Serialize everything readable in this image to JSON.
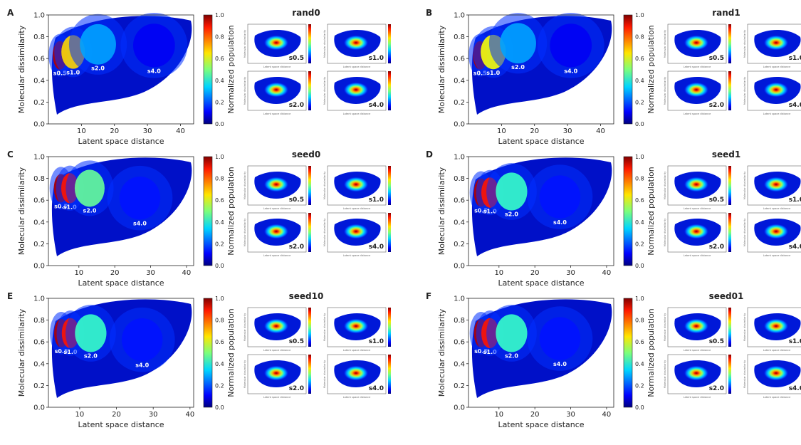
{
  "figure": {
    "shared": {
      "xlabel": "Latent space distance",
      "ylabel": "Molecular dissimilarity",
      "colorbar_label": "Normalized population",
      "colorbar_ticks": [
        "0.0",
        "0.2",
        "0.4",
        "0.6",
        "0.8",
        "1.0"
      ],
      "y_ticks": [
        "0.0",
        "0.2",
        "0.4",
        "0.6",
        "0.8",
        "1.0"
      ],
      "colormap": "jet",
      "inset_labels": [
        "s0.5",
        "s1.0",
        "s2.0",
        "s4.0"
      ],
      "inset_xlabel": "Latent space distance",
      "inset_ylabel": "Molecular dissimilarity"
    }
  },
  "chart_data": [
    {
      "panel": "A",
      "title": "rand0",
      "type": "heatmap",
      "xlabel": "Latent space distance",
      "ylabel": "Molecular dissimilarity",
      "x_ticks": [
        "10",
        "20",
        "30",
        "40"
      ],
      "xlim": [
        0,
        44
      ],
      "ylim": [
        0,
        1
      ],
      "clusters": [
        {
          "label": "s0.5",
          "x": 3.5,
          "y": 0.63,
          "peak": 1.0
        },
        {
          "label": "s1.0",
          "x": 7.5,
          "y": 0.66,
          "peak": 0.7
        },
        {
          "label": "s2.0",
          "x": 15,
          "y": 0.73,
          "peak": 0.3
        },
        {
          "label": "s4.0",
          "x": 32,
          "y": 0.72,
          "peak": 0.12
        }
      ]
    },
    {
      "panel": "B",
      "title": "rand1",
      "type": "heatmap",
      "xlabel": "Latent space distance",
      "ylabel": "Molecular dissimilarity",
      "x_ticks": [
        "10",
        "20",
        "30",
        "40"
      ],
      "xlim": [
        0,
        44
      ],
      "ylim": [
        0,
        1
      ],
      "clusters": [
        {
          "label": "s0.5",
          "x": 3.5,
          "y": 0.63,
          "peak": 1.0
        },
        {
          "label": "s1.0",
          "x": 7.5,
          "y": 0.66,
          "peak": 0.65
        },
        {
          "label": "s2.0",
          "x": 15,
          "y": 0.74,
          "peak": 0.3
        },
        {
          "label": "s4.0",
          "x": 31,
          "y": 0.72,
          "peak": 0.12
        }
      ]
    },
    {
      "panel": "C",
      "title": "seed0",
      "type": "heatmap",
      "xlabel": "Latent space distance",
      "ylabel": "Molecular dissimilarity",
      "x_ticks": [
        "10",
        "20",
        "30",
        "40"
      ],
      "xlim": [
        1.5,
        42
      ],
      "ylim": [
        0,
        1
      ],
      "clusters": [
        {
          "label": "s0.5",
          "x": 5,
          "y": 0.71,
          "peak": 1.0
        },
        {
          "label": "s1.0",
          "x": 7.5,
          "y": 0.71,
          "peak": 0.9
        },
        {
          "label": "s2.0",
          "x": 13,
          "y": 0.71,
          "peak": 0.5
        },
        {
          "label": "s4.0",
          "x": 27,
          "y": 0.62,
          "peak": 0.15
        }
      ]
    },
    {
      "panel": "D",
      "title": "seed1",
      "type": "heatmap",
      "xlabel": "Latent space distance",
      "ylabel": "Molecular dissimilarity",
      "x_ticks": [
        "10",
        "20",
        "30",
        "40"
      ],
      "xlim": [
        1.5,
        42
      ],
      "ylim": [
        0,
        1
      ],
      "clusters": [
        {
          "label": "s0.5",
          "x": 5,
          "y": 0.67,
          "peak": 1.0
        },
        {
          "label": "s1.0",
          "x": 7.5,
          "y": 0.67,
          "peak": 0.9
        },
        {
          "label": "s2.0",
          "x": 13.5,
          "y": 0.68,
          "peak": 0.45
        },
        {
          "label": "s4.0",
          "x": 27,
          "y": 0.63,
          "peak": 0.15
        }
      ]
    },
    {
      "panel": "E",
      "title": "seed10",
      "type": "heatmap",
      "xlabel": "Latent space distance",
      "ylabel": "Molecular dissimilarity",
      "x_ticks": [
        "10",
        "20",
        "30",
        "40"
      ],
      "xlim": [
        1.5,
        41
      ],
      "ylim": [
        0,
        1
      ],
      "clusters": [
        {
          "label": "s0.5",
          "x": 5,
          "y": 0.68,
          "peak": 1.0
        },
        {
          "label": "s1.0",
          "x": 7.5,
          "y": 0.68,
          "peak": 0.9
        },
        {
          "label": "s2.0",
          "x": 13,
          "y": 0.68,
          "peak": 0.45
        },
        {
          "label": "s4.0",
          "x": 27,
          "y": 0.62,
          "peak": 0.15
        }
      ]
    },
    {
      "panel": "F",
      "title": "seed01",
      "type": "heatmap",
      "xlabel": "Latent space distance",
      "ylabel": "Molecular dissimilarity",
      "x_ticks": [
        "10",
        "20",
        "30",
        "40"
      ],
      "xlim": [
        1.5,
        42
      ],
      "ylim": [
        0,
        1
      ],
      "clusters": [
        {
          "label": "s0.5",
          "x": 5,
          "y": 0.68,
          "peak": 1.0
        },
        {
          "label": "s1.0",
          "x": 7.5,
          "y": 0.68,
          "peak": 0.9
        },
        {
          "label": "s2.0",
          "x": 13.5,
          "y": 0.68,
          "peak": 0.45
        },
        {
          "label": "s4.0",
          "x": 27,
          "y": 0.63,
          "peak": 0.15
        }
      ]
    }
  ]
}
